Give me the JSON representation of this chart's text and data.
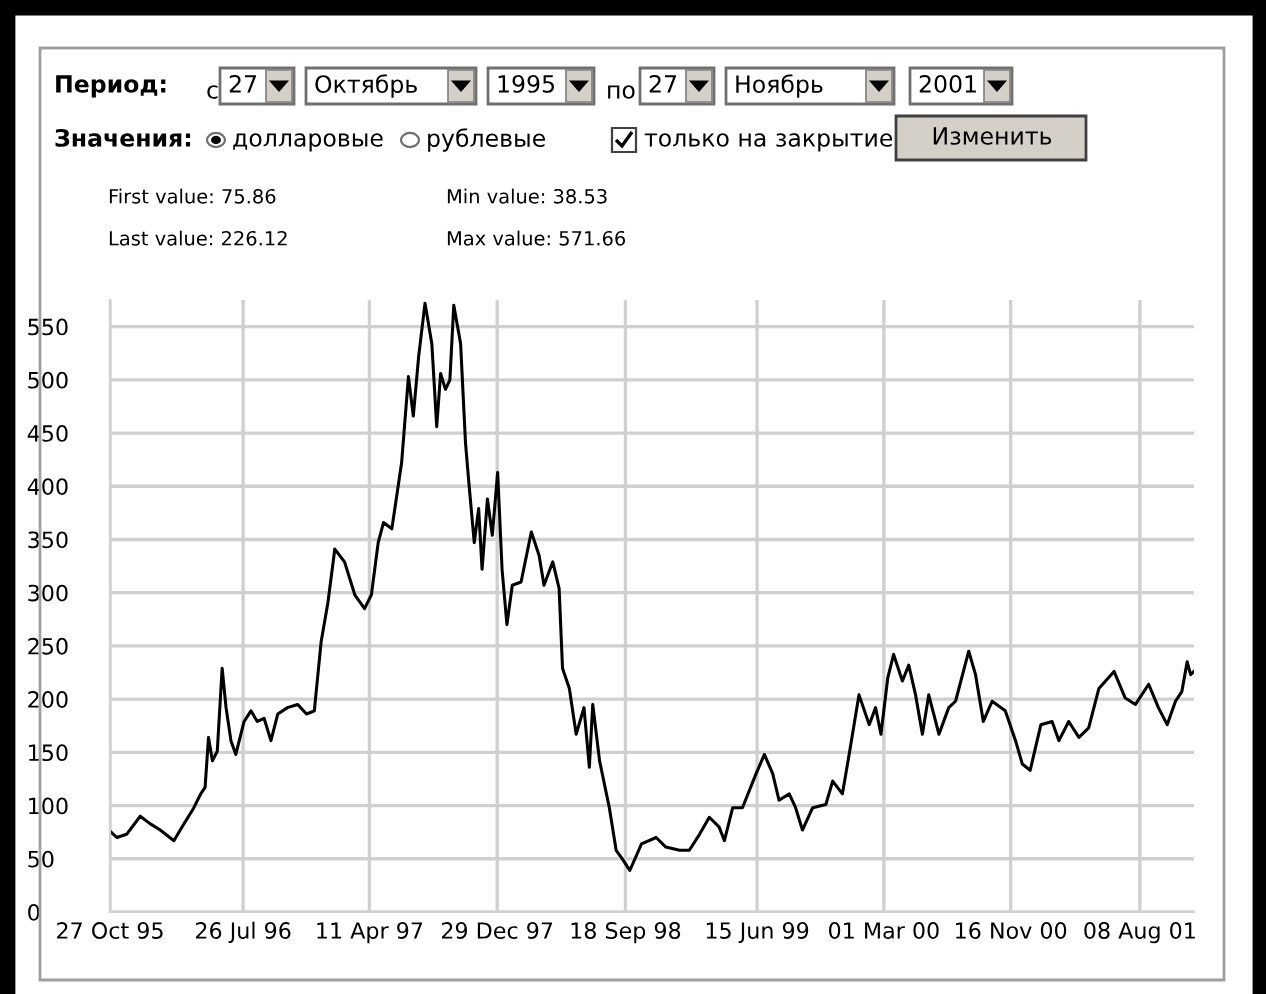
{
  "chart_data": {
    "type": "line",
    "annotations": [
      "Период:",
      "с",
      "27",
      "Октябрь",
      "1995",
      "по",
      "27",
      "Ноябрь",
      "2001",
      "Значения:",
      "долларовые",
      "рублевые",
      "только на закрытие",
      "Изменить",
      "First value: 75.86",
      "Last value: 226.12",
      "Min value: 38.53",
      "Max value: 571.66"
    ],
    "x": [
      "1995-10-27",
      "1995-11-10",
      "1995-11-30",
      "1995-12-28",
      "1996-01-17",
      "1996-02-07",
      "1996-03-06",
      "1996-03-19",
      "1996-04-16",
      "1996-04-30",
      "1996-05-09",
      "1996-05-16",
      "1996-05-24",
      "1996-06-03",
      "1996-06-13",
      "1996-06-21",
      "1996-07-01",
      "1996-07-11",
      "1996-07-28",
      "1996-08-11",
      "1996-08-24",
      "1996-09-07",
      "1996-09-21",
      "1996-10-05",
      "1996-10-25",
      "1996-11-15",
      "1996-12-03",
      "1996-12-19",
      "1997-01-02",
      "1997-01-16",
      "1997-01-30",
      "1997-02-19",
      "1997-03-12",
      "1997-04-01",
      "1997-04-15",
      "1997-04-29",
      "1997-05-10",
      "1997-05-27",
      "1997-06-16",
      "1997-06-30",
      "1997-07-10",
      "1997-07-21",
      "1997-08-03",
      "1997-08-17",
      "1997-08-27",
      "1997-09-04",
      "1997-09-14",
      "1997-09-23",
      "1997-10-01",
      "1997-10-15",
      "1997-10-25",
      "1997-11-01",
      "1997-11-12",
      "1997-11-21",
      "1997-11-28",
      "1997-12-09",
      "1997-12-19",
      "1997-12-30",
      "1998-01-08",
      "1998-01-18",
      "1998-01-29",
      "1998-02-16",
      "1998-03-09",
      "1998-03-25",
      "1998-04-04",
      "1998-04-22",
      "1998-05-05",
      "1998-05-12",
      "1998-05-26",
      "1998-06-09",
      "1998-06-25",
      "1998-07-06",
      "1998-07-13",
      "1998-07-27",
      "1998-08-16",
      "1998-08-30",
      "1998-09-13",
      "1998-09-27",
      "1998-10-21",
      "1998-11-20",
      "1998-12-10",
      "1999-01-07",
      "1999-01-27",
      "1999-02-17",
      "1999-03-09",
      "1999-03-29",
      "1999-04-09",
      "1999-04-26",
      "1999-05-16",
      "1999-06-13",
      "1999-06-30",
      "1999-07-17",
      "1999-07-30",
      "1999-08-20",
      "1999-09-02",
      "1999-09-16",
      "1999-10-07",
      "1999-11-03",
      "1999-11-17",
      "1999-12-07",
      "1999-12-23",
      "2000-01-10",
      "2000-01-31",
      "2000-02-13",
      "2000-02-24",
      "2000-03-09",
      "2000-03-21",
      "2000-04-08",
      "2000-04-21",
      "2000-05-05",
      "2000-05-19",
      "2000-06-01",
      "2000-06-22",
      "2000-07-12",
      "2000-07-26",
      "2000-08-22",
      "2000-09-05",
      "2000-09-21",
      "2000-10-09",
      "2000-11-05",
      "2000-11-26",
      "2000-12-10",
      "2000-12-26",
      "2001-01-17",
      "2001-02-09",
      "2001-02-23",
      "2001-03-15",
      "2001-04-05",
      "2001-04-25",
      "2001-05-16",
      "2001-06-16",
      "2001-07-09",
      "2001-07-30",
      "2001-08-26",
      "2001-09-15",
      "2001-10-03",
      "2001-10-20",
      "2001-11-02",
      "2001-11-13",
      "2001-11-20",
      "2001-11-27"
    ],
    "series": [
      {
        "color": "#000000",
        "values": [
          76,
          70,
          73,
          90,
          83,
          77,
          67,
          77,
          98,
          111,
          117,
          164,
          142,
          151,
          229,
          192,
          161,
          148,
          179,
          189,
          179,
          182,
          161,
          186,
          192,
          195,
          186,
          189,
          254,
          291,
          341,
          329,
          298,
          285,
          298,
          347,
          366,
          360,
          422,
          503,
          466,
          522,
          572,
          534,
          456,
          506,
          491,
          500,
          570,
          534,
          441,
          403,
          347,
          379,
          322,
          388,
          354,
          413,
          322,
          270,
          307,
          310,
          357,
          335,
          307,
          329,
          304,
          229,
          210,
          167,
          192,
          136,
          195,
          142,
          98,
          58,
          49,
          39,
          64,
          70,
          61,
          58,
          58,
          73,
          89,
          80,
          67,
          98,
          98,
          130,
          148,
          130,
          105,
          111,
          98,
          77,
          98,
          101,
          123,
          111,
          154,
          204,
          176,
          192,
          167,
          220,
          242,
          217,
          232,
          204,
          167,
          204,
          167,
          192,
          198,
          245,
          223,
          179,
          198,
          189,
          161,
          139,
          133,
          176,
          179,
          161,
          179,
          164,
          173,
          210,
          226,
          201,
          195,
          214,
          192,
          176,
          198,
          207,
          235,
          223,
          226
        ]
      }
    ],
    "xlim": [
      "1995-10-27",
      "2001-11-27"
    ],
    "xticks": [
      {
        "value": "1995-10-27",
        "label": "27 Oct 95"
      },
      {
        "value": "1996-07-26",
        "label": "26 Jul 96"
      },
      {
        "value": "1997-04-11",
        "label": "11 Apr 97"
      },
      {
        "value": "1997-12-29",
        "label": "29 Dec 97"
      },
      {
        "value": "1998-09-18",
        "label": "18 Sep 98"
      },
      {
        "value": "1999-06-15",
        "label": "15 Jun 99"
      },
      {
        "value": "2000-03-01",
        "label": "01 Mar 00"
      },
      {
        "value": "2000-11-16",
        "label": "16 Nov 00"
      },
      {
        "value": "2001-08-08",
        "label": "08 Aug 01"
      }
    ],
    "ylim": [
      0,
      575
    ],
    "yticks": [
      0,
      50,
      100,
      150,
      200,
      250,
      300,
      350,
      400,
      450,
      500,
      550
    ],
    "grid": true,
    "line_style": "solid"
  }
}
